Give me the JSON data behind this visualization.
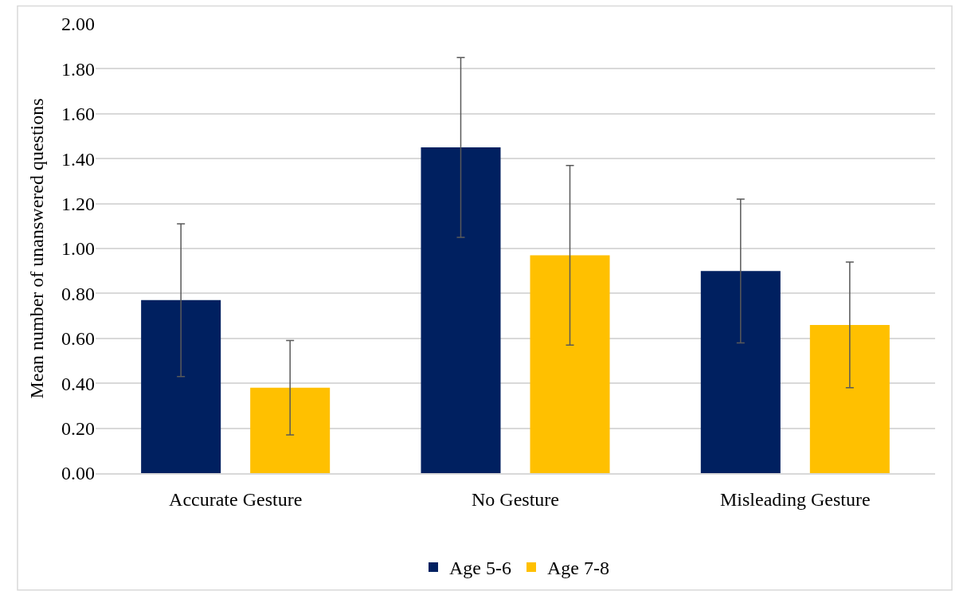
{
  "chart_data": {
    "type": "bar",
    "ylabel": "Mean number of unanswered questions",
    "categories": [
      "Accurate Gesture",
      "No Gesture",
      "Misleading Gesture"
    ],
    "series": [
      {
        "name": "Age 5-6",
        "color": "#002060",
        "values": [
          0.77,
          1.45,
          0.9
        ],
        "errors": [
          0.34,
          0.4,
          0.32
        ]
      },
      {
        "name": "Age 7-8",
        "color": "#ffc000",
        "values": [
          0.38,
          0.97,
          0.66
        ],
        "errors": [
          0.21,
          0.4,
          0.28
        ]
      }
    ],
    "ylim": [
      0,
      2
    ],
    "yticks": [
      {
        "value": 0,
        "label": "0.00"
      },
      {
        "value": 0.2,
        "label": "0.20"
      },
      {
        "value": 0.4,
        "label": "0.40"
      },
      {
        "value": 0.6,
        "label": "0.60"
      },
      {
        "value": 0.8,
        "label": "0.80"
      },
      {
        "value": 1.0,
        "label": "1.00"
      },
      {
        "value": 1.2,
        "label": "1.20"
      },
      {
        "value": 1.4,
        "label": "1.40"
      },
      {
        "value": 1.6,
        "label": "1.60"
      },
      {
        "value": 1.8,
        "label": "1.80"
      },
      {
        "value": 2.0,
        "label": "2.00"
      }
    ],
    "grid": "y",
    "legend": "bottom"
  }
}
